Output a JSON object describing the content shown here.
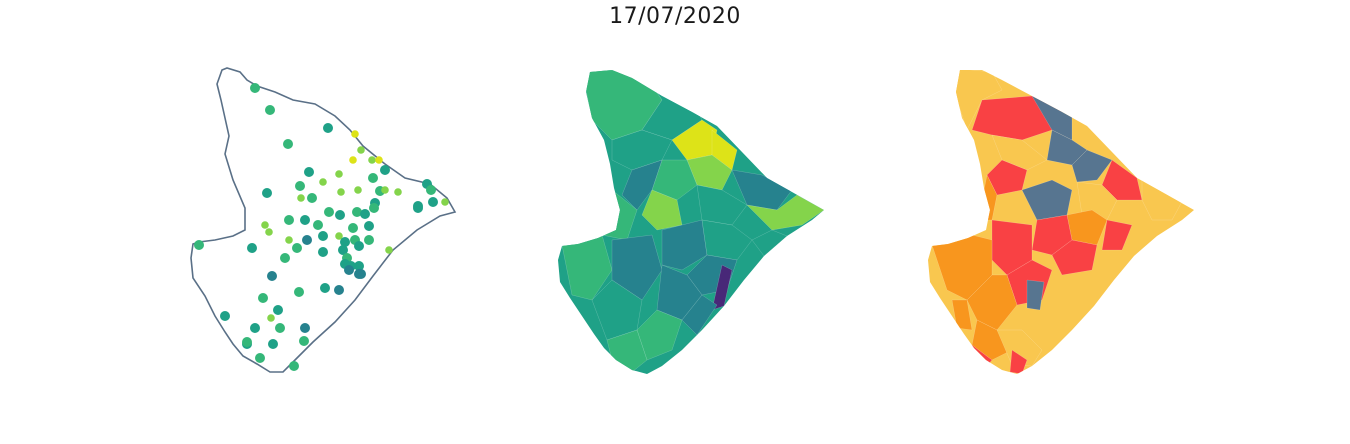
{
  "title": "17/07/2020",
  "colors": {
    "outline": "#5a7087",
    "viridis_dark": "#3e4a89",
    "viridis_purple": "#482878",
    "viridis_teal": "#26828e",
    "viridis_green": "#1fa187",
    "viridis_mid": "#35b779",
    "viridis_light": "#84d44b",
    "viridis_yellow": "#dde318",
    "risk_red": "#f94144",
    "risk_orange": "#f8961e",
    "risk_yellow": "#f9c74f",
    "risk_slate": "#577590"
  },
  "panels": [
    {
      "id": "stations",
      "kind": "point-map",
      "icon": "map-points-icon"
    },
    {
      "id": "interpolated",
      "kind": "choropleth-viridis",
      "icon": "map-choropleth-icon"
    },
    {
      "id": "risk",
      "kind": "choropleth-categorical",
      "icon": "map-choropleth-icon"
    }
  ]
}
